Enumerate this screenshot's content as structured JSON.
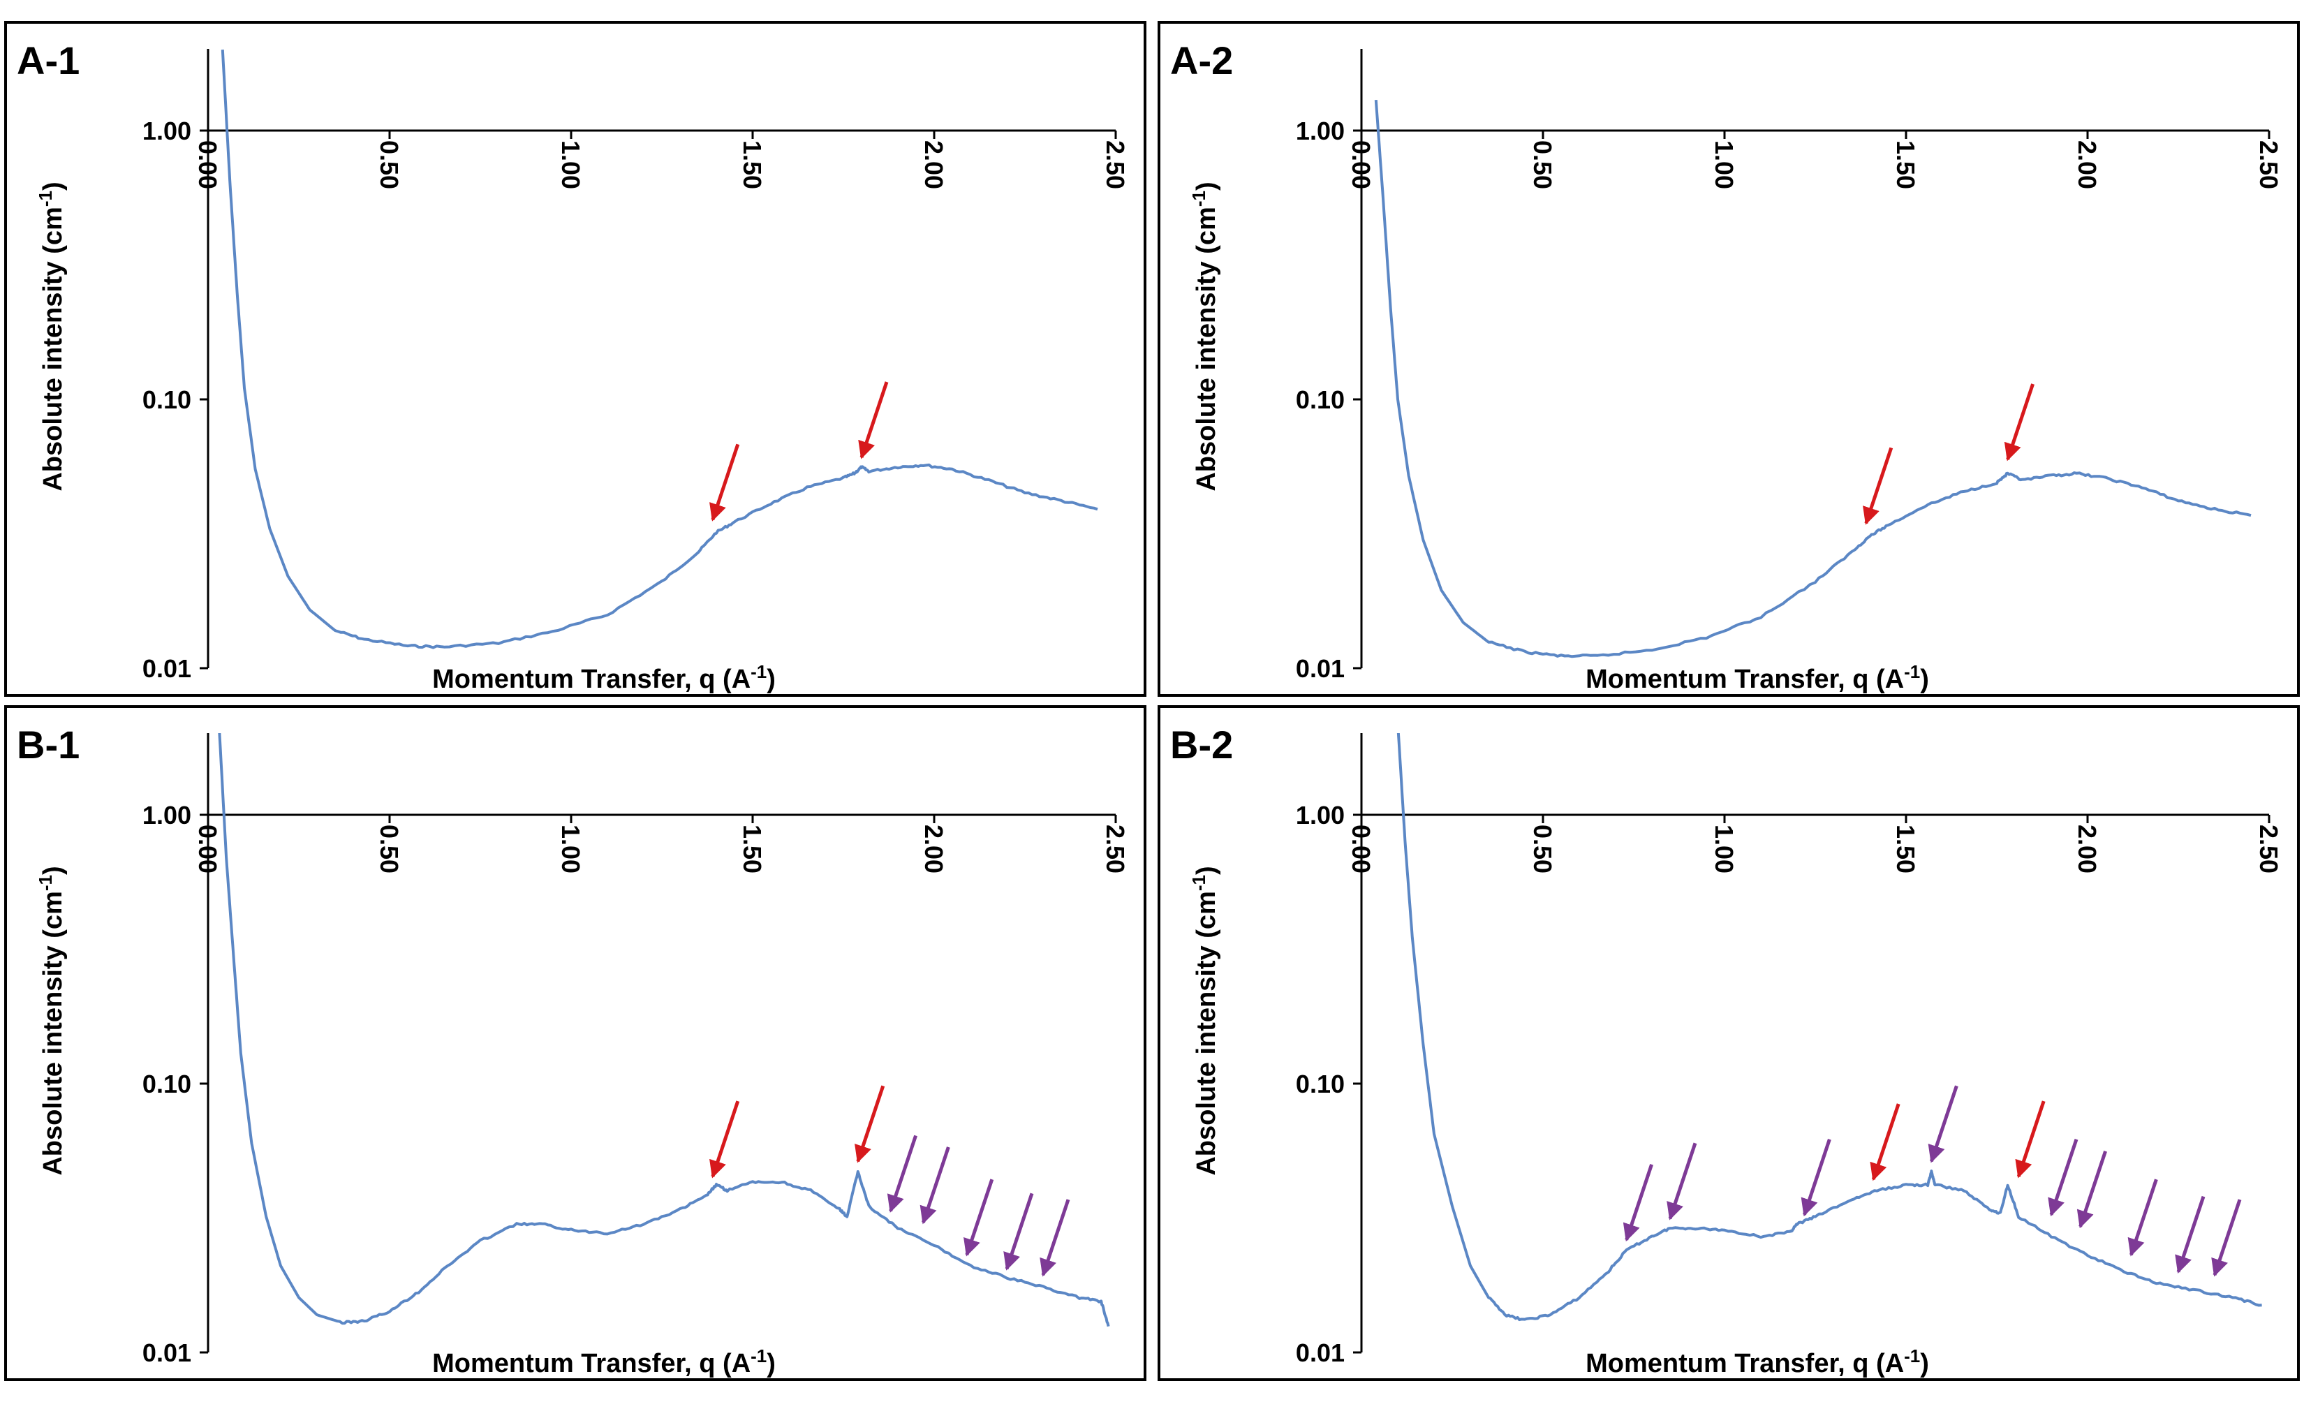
{
  "figure": {
    "background": "#ffffff",
    "frame_color": "#000000"
  },
  "chart_data": [
    {
      "id": "A-1",
      "panel_label": "A-1",
      "type": "line",
      "xlabel": {
        "main": "Momentum Transfer, q (A",
        "sup": "-1",
        "end": ")"
      },
      "ylabel": {
        "main": "Absolute intensity (cm",
        "sup": "-1",
        "end": ")"
      },
      "xlim": [
        0,
        2.5
      ],
      "ylim": [
        0.01,
        2.2
      ],
      "yscale": "log",
      "xticks": [
        "0.00",
        "0.50",
        "1.00",
        "1.50",
        "2.00",
        "2.50"
      ],
      "yticks": [
        "1.00",
        "0.10",
        "0.01"
      ],
      "series": [
        {
          "name": "Intensity",
          "color": "#5b87c5",
          "points": [
            [
              0.04,
              2.0
            ],
            [
              0.06,
              0.65
            ],
            [
              0.08,
              0.25
            ],
            [
              0.1,
              0.11
            ],
            [
              0.13,
              0.055
            ],
            [
              0.17,
              0.033
            ],
            [
              0.22,
              0.022
            ],
            [
              0.28,
              0.0165
            ],
            [
              0.35,
              0.0138
            ],
            [
              0.43,
              0.0128
            ],
            [
              0.55,
              0.0121
            ],
            [
              0.65,
              0.012
            ],
            [
              0.8,
              0.0124
            ],
            [
              0.95,
              0.0137
            ],
            [
              1.1,
              0.0158
            ],
            [
              1.25,
              0.021
            ],
            [
              1.35,
              0.027
            ],
            [
              1.4,
              0.032
            ],
            [
              1.45,
              0.035
            ],
            [
              1.55,
              0.041
            ],
            [
              1.65,
              0.047
            ],
            [
              1.75,
              0.051
            ],
            [
              1.78,
              0.053
            ],
            [
              1.8,
              0.056
            ],
            [
              1.82,
              0.054
            ],
            [
              1.9,
              0.056
            ],
            [
              1.97,
              0.057
            ],
            [
              2.05,
              0.055
            ],
            [
              2.15,
              0.05
            ],
            [
              2.25,
              0.045
            ],
            [
              2.35,
              0.042
            ],
            [
              2.45,
              0.039
            ]
          ]
        }
      ],
      "arrows": [
        {
          "q": 1.39,
          "intensity": 0.034,
          "color": "#d7191c"
        },
        {
          "q": 1.8,
          "intensity": 0.058,
          "color": "#d7191c"
        }
      ]
    },
    {
      "id": "A-2",
      "panel_label": "A-2",
      "type": "line",
      "xlabel": {
        "main": "Momentum Transfer, q (A",
        "sup": "-1",
        "end": ")"
      },
      "ylabel": {
        "main": "Absolute intensity (cm",
        "sup": "-1",
        "end": ")"
      },
      "xlim": [
        0,
        2.5
      ],
      "ylim": [
        0.01,
        2.2
      ],
      "yscale": "log",
      "xticks": [
        "0.00",
        "0.50",
        "1.00",
        "1.50",
        "2.00",
        "2.50"
      ],
      "yticks": [
        "1.00",
        "0.10",
        "0.01"
      ],
      "series": [
        {
          "name": "Intensity",
          "color": "#5b87c5",
          "points": [
            [
              0.04,
              1.3
            ],
            [
              0.06,
              0.55
            ],
            [
              0.08,
              0.22
            ],
            [
              0.1,
              0.1
            ],
            [
              0.13,
              0.052
            ],
            [
              0.17,
              0.03
            ],
            [
              0.22,
              0.0195
            ],
            [
              0.28,
              0.0148
            ],
            [
              0.35,
              0.0125
            ],
            [
              0.45,
              0.0115
            ],
            [
              0.55,
              0.0111
            ],
            [
              0.65,
              0.0111
            ],
            [
              0.8,
              0.0117
            ],
            [
              0.95,
              0.013
            ],
            [
              1.1,
              0.0155
            ],
            [
              1.25,
              0.021
            ],
            [
              1.35,
              0.027
            ],
            [
              1.4,
              0.031
            ],
            [
              1.45,
              0.034
            ],
            [
              1.55,
              0.04
            ],
            [
              1.65,
              0.045
            ],
            [
              1.75,
              0.049
            ],
            [
              1.78,
              0.053
            ],
            [
              1.82,
              0.05
            ],
            [
              1.9,
              0.052
            ],
            [
              1.97,
              0.053
            ],
            [
              2.05,
              0.051
            ],
            [
              2.15,
              0.047
            ],
            [
              2.25,
              0.042
            ],
            [
              2.35,
              0.039
            ],
            [
              2.45,
              0.037
            ]
          ]
        }
      ],
      "arrows": [
        {
          "q": 1.39,
          "intensity": 0.033,
          "color": "#d7191c"
        },
        {
          "q": 1.78,
          "intensity": 0.057,
          "color": "#d7191c"
        }
      ]
    },
    {
      "id": "B-1",
      "panel_label": "B-1",
      "type": "line",
      "xlabel": {
        "main": "Momentum Transfer, q (A",
        "sup": "-1",
        "end": ")"
      },
      "ylabel": {
        "main": "Absolute intensity (cm",
        "sup": "-1",
        "end": ")"
      },
      "xlim": [
        0,
        2.5
      ],
      "ylim": [
        0.01,
        2.2
      ],
      "yscale": "log",
      "xticks": [
        "0.00",
        "0.50",
        "1.00",
        "1.50",
        "2.00",
        "2.50"
      ],
      "yticks": [
        "1.00",
        "0.10",
        "0.01"
      ],
      "series": [
        {
          "name": "Intensity",
          "color": "#5b87c5",
          "points": [
            [
              0.03,
              2.2
            ],
            [
              0.05,
              0.7
            ],
            [
              0.07,
              0.3
            ],
            [
              0.09,
              0.13
            ],
            [
              0.12,
              0.06
            ],
            [
              0.16,
              0.032
            ],
            [
              0.2,
              0.021
            ],
            [
              0.25,
              0.016
            ],
            [
              0.3,
              0.0138
            ],
            [
              0.37,
              0.0129
            ],
            [
              0.43,
              0.0131
            ],
            [
              0.5,
              0.0142
            ],
            [
              0.58,
              0.0168
            ],
            [
              0.66,
              0.021
            ],
            [
              0.75,
              0.026
            ],
            [
              0.85,
              0.03
            ],
            [
              0.92,
              0.03
            ],
            [
              1.0,
              0.0285
            ],
            [
              1.1,
              0.0278
            ],
            [
              1.2,
              0.03
            ],
            [
              1.3,
              0.034
            ],
            [
              1.37,
              0.038
            ],
            [
              1.4,
              0.042
            ],
            [
              1.43,
              0.04
            ],
            [
              1.5,
              0.043
            ],
            [
              1.58,
              0.043
            ],
            [
              1.66,
              0.04
            ],
            [
              1.74,
              0.034
            ],
            [
              1.76,
              0.032
            ],
            [
              1.79,
              0.047
            ],
            [
              1.82,
              0.035
            ],
            [
              1.9,
              0.029
            ],
            [
              2.0,
              0.025
            ],
            [
              2.1,
              0.021
            ],
            [
              2.2,
              0.019
            ],
            [
              2.3,
              0.0175
            ],
            [
              2.4,
              0.016
            ],
            [
              2.46,
              0.0155
            ],
            [
              2.48,
              0.0125
            ]
          ]
        }
      ],
      "arrows": [
        {
          "q": 1.39,
          "intensity": 0.043,
          "color": "#d7191c"
        },
        {
          "q": 1.79,
          "intensity": 0.049,
          "color": "#d7191c"
        },
        {
          "q": 1.88,
          "intensity": 0.032,
          "color": "#7e3a96"
        },
        {
          "q": 1.97,
          "intensity": 0.029,
          "color": "#7e3a96"
        },
        {
          "q": 2.09,
          "intensity": 0.022,
          "color": "#7e3a96"
        },
        {
          "q": 2.2,
          "intensity": 0.0195,
          "color": "#7e3a96"
        },
        {
          "q": 2.3,
          "intensity": 0.0185,
          "color": "#7e3a96"
        }
      ]
    },
    {
      "id": "B-2",
      "panel_label": "B-2",
      "type": "line",
      "xlabel": {
        "main": "Momentum Transfer, q (A",
        "sup": "-1",
        "end": ")"
      },
      "ylabel": {
        "main": "Absolute intensity (cm",
        "sup": "-1",
        "end": ")"
      },
      "xlim": [
        0,
        2.5
      ],
      "ylim": [
        0.01,
        2.2
      ],
      "yscale": "log",
      "xticks": [
        "0.00",
        "0.50",
        "1.00",
        "1.50",
        "2.00",
        "2.50"
      ],
      "yticks": [
        "1.00",
        "0.10",
        "0.01"
      ],
      "series": [
        {
          "name": "Intensity",
          "color": "#5b87c5",
          "points": [
            [
              0.1,
              2.2
            ],
            [
              0.12,
              0.8
            ],
            [
              0.14,
              0.35
            ],
            [
              0.17,
              0.14
            ],
            [
              0.2,
              0.065
            ],
            [
              0.25,
              0.035
            ],
            [
              0.3,
              0.021
            ],
            [
              0.35,
              0.016
            ],
            [
              0.4,
              0.0137
            ],
            [
              0.45,
              0.0132
            ],
            [
              0.52,
              0.0138
            ],
            [
              0.6,
              0.016
            ],
            [
              0.68,
              0.02
            ],
            [
              0.73,
              0.024
            ],
            [
              0.8,
              0.027
            ],
            [
              0.85,
              0.029
            ],
            [
              0.92,
              0.029
            ],
            [
              1.0,
              0.0285
            ],
            [
              1.1,
              0.027
            ],
            [
              1.18,
              0.028
            ],
            [
              1.2,
              0.03
            ],
            [
              1.25,
              0.032
            ],
            [
              1.35,
              0.037
            ],
            [
              1.42,
              0.04
            ],
            [
              1.5,
              0.042
            ],
            [
              1.56,
              0.042
            ],
            [
              1.57,
              0.047
            ],
            [
              1.58,
              0.042
            ],
            [
              1.66,
              0.04
            ],
            [
              1.73,
              0.034
            ],
            [
              1.76,
              0.033
            ],
            [
              1.78,
              0.042
            ],
            [
              1.81,
              0.032
            ],
            [
              1.9,
              0.027
            ],
            [
              2.0,
              0.023
            ],
            [
              2.1,
              0.02
            ],
            [
              2.2,
              0.018
            ],
            [
              2.3,
              0.017
            ],
            [
              2.4,
              0.016
            ],
            [
              2.48,
              0.015
            ]
          ]
        }
      ],
      "arrows": [
        {
          "q": 0.73,
          "intensity": 0.025,
          "color": "#7e3a96"
        },
        {
          "q": 0.85,
          "intensity": 0.03,
          "color": "#7e3a96"
        },
        {
          "q": 1.22,
          "intensity": 0.031,
          "color": "#7e3a96"
        },
        {
          "q": 1.41,
          "intensity": 0.042,
          "color": "#d7191c"
        },
        {
          "q": 1.57,
          "intensity": 0.049,
          "color": "#7e3a96"
        },
        {
          "q": 1.81,
          "intensity": 0.043,
          "color": "#d7191c"
        },
        {
          "q": 1.9,
          "intensity": 0.031,
          "color": "#7e3a96"
        },
        {
          "q": 1.98,
          "intensity": 0.028,
          "color": "#7e3a96"
        },
        {
          "q": 2.12,
          "intensity": 0.022,
          "color": "#7e3a96"
        },
        {
          "q": 2.25,
          "intensity": 0.019,
          "color": "#7e3a96"
        },
        {
          "q": 2.35,
          "intensity": 0.0185,
          "color": "#7e3a96"
        }
      ]
    }
  ]
}
